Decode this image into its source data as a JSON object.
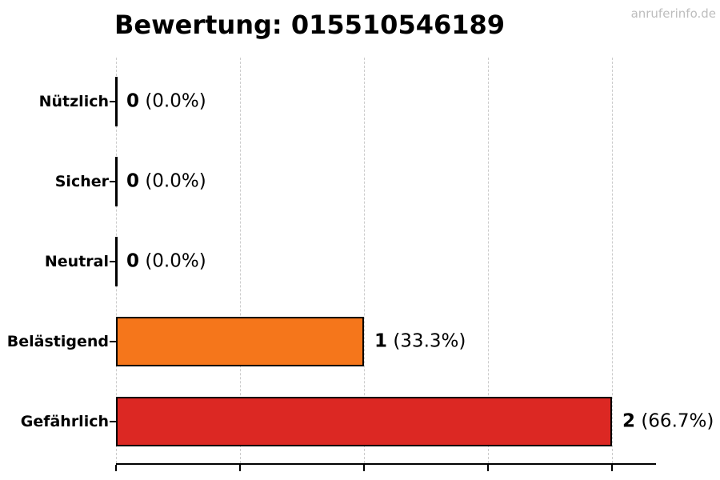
{
  "header": {
    "title": "Bewertung: 015510546189",
    "watermark": "anruferinfo.de"
  },
  "colors": {
    "bar_orange": "#F5761B",
    "bar_red": "#DC2823",
    "bar_border": "#000000",
    "zero_bar": "#000000",
    "grid": "#cccccc",
    "axis": "#000000",
    "title_text": "#000000",
    "watermark_text": "#bdbdbd"
  },
  "chart_data": {
    "type": "bar",
    "orientation": "horizontal",
    "title": "Bewertung: 015510546189",
    "categories": [
      "Nützlich",
      "Sicher",
      "Neutral",
      "Belästigend",
      "Gefährlich"
    ],
    "values": [
      0,
      0,
      0,
      1,
      2
    ],
    "percentages": [
      "0.0%",
      "0.0%",
      "0.0%",
      "33.3%",
      "66.7%"
    ],
    "value_labels": [
      "0 (0.0%)",
      "0 (0.0%)",
      "0 (0.0%)",
      "1 (33.3%)",
      "2 (66.7%)"
    ],
    "bar_colors": [
      "none",
      "none",
      "none",
      "#F5761B",
      "#DC2823"
    ],
    "xlabel": "",
    "ylabel": "",
    "xlim": [
      0,
      2.18
    ],
    "xticks": [
      0,
      0.5,
      1,
      1.5,
      2
    ],
    "xtick_labels_shown": false,
    "grid": true,
    "grid_style": "dashed-vertical",
    "legend": "none"
  }
}
